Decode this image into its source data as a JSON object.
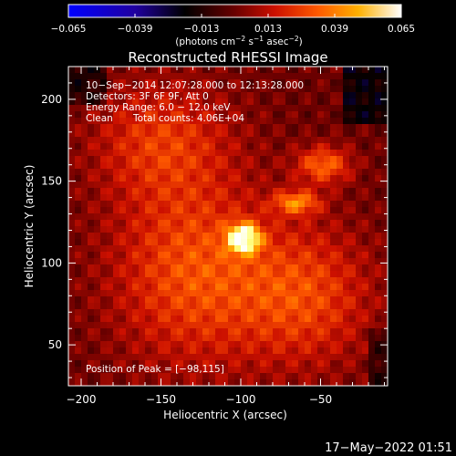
{
  "colorbar": {
    "ticks": [
      "−0.065",
      "−0.039",
      "−0.013",
      "0.013",
      "0.039",
      "0.065"
    ],
    "units": "(photons cm",
    "units_exp1": "−2",
    "units_mid": " s",
    "units_exp2": "−1",
    "units_end": " asec",
    "units_exp3": "−2",
    "units_close": ")"
  },
  "image_info": {
    "line1": "10−Sep−2014 12:07:28.000 to 12:13:28.000",
    "line2": "Detectors: 3F 6F 9F, Att 0",
    "line3": "Energy Range: 6.0 − 12.0 keV",
    "line4_left": "Clean",
    "line4_right": "Total counts: 4.06E+04",
    "peak": "Position of Peak = [−98,115]"
  },
  "footer": {
    "timestamp": "17−May−2022 01:51"
  },
  "chart_data": {
    "type": "heatmap",
    "title": "Reconstructed RHESSI Image",
    "xlabel": "Heliocentric X (arcsec)",
    "ylabel": "Heliocentric Y (arcsec)",
    "xlim": [
      -208,
      -8
    ],
    "ylim": [
      25,
      220
    ],
    "x_ticks": [
      -200,
      -150,
      -100,
      -50
    ],
    "x_tick_labels": [
      "−200",
      "−150",
      "−100",
      "−50"
    ],
    "y_ticks": [
      50,
      100,
      150,
      200
    ],
    "y_tick_labels": [
      "50",
      "100",
      "150",
      "200"
    ],
    "peak_position": [
      -98,
      115
    ],
    "sources": [
      {
        "x": -98,
        "y": 115,
        "sx": 7,
        "sy": 6,
        "amp": 1.0
      },
      {
        "x": -65,
        "y": 137,
        "sx": 10,
        "sy": 5,
        "amp": 0.55
      },
      {
        "x": -48,
        "y": 160,
        "sx": 12,
        "sy": 8,
        "amp": 0.5
      },
      {
        "x": -130,
        "y": 95,
        "sx": 35,
        "sy": 40,
        "amp": 0.45
      },
      {
        "x": -60,
        "y": 80,
        "sx": 30,
        "sy": 30,
        "amp": 0.4
      },
      {
        "x": -150,
        "y": 175,
        "sx": 30,
        "sy": 25,
        "amp": 0.35
      }
    ],
    "colormap": [
      "#0000ff",
      "#2000a0",
      "#000000",
      "#6a0000",
      "#cc1000",
      "#ff5a00",
      "#ffb000",
      "#ffff80",
      "#ffffff"
    ]
  }
}
